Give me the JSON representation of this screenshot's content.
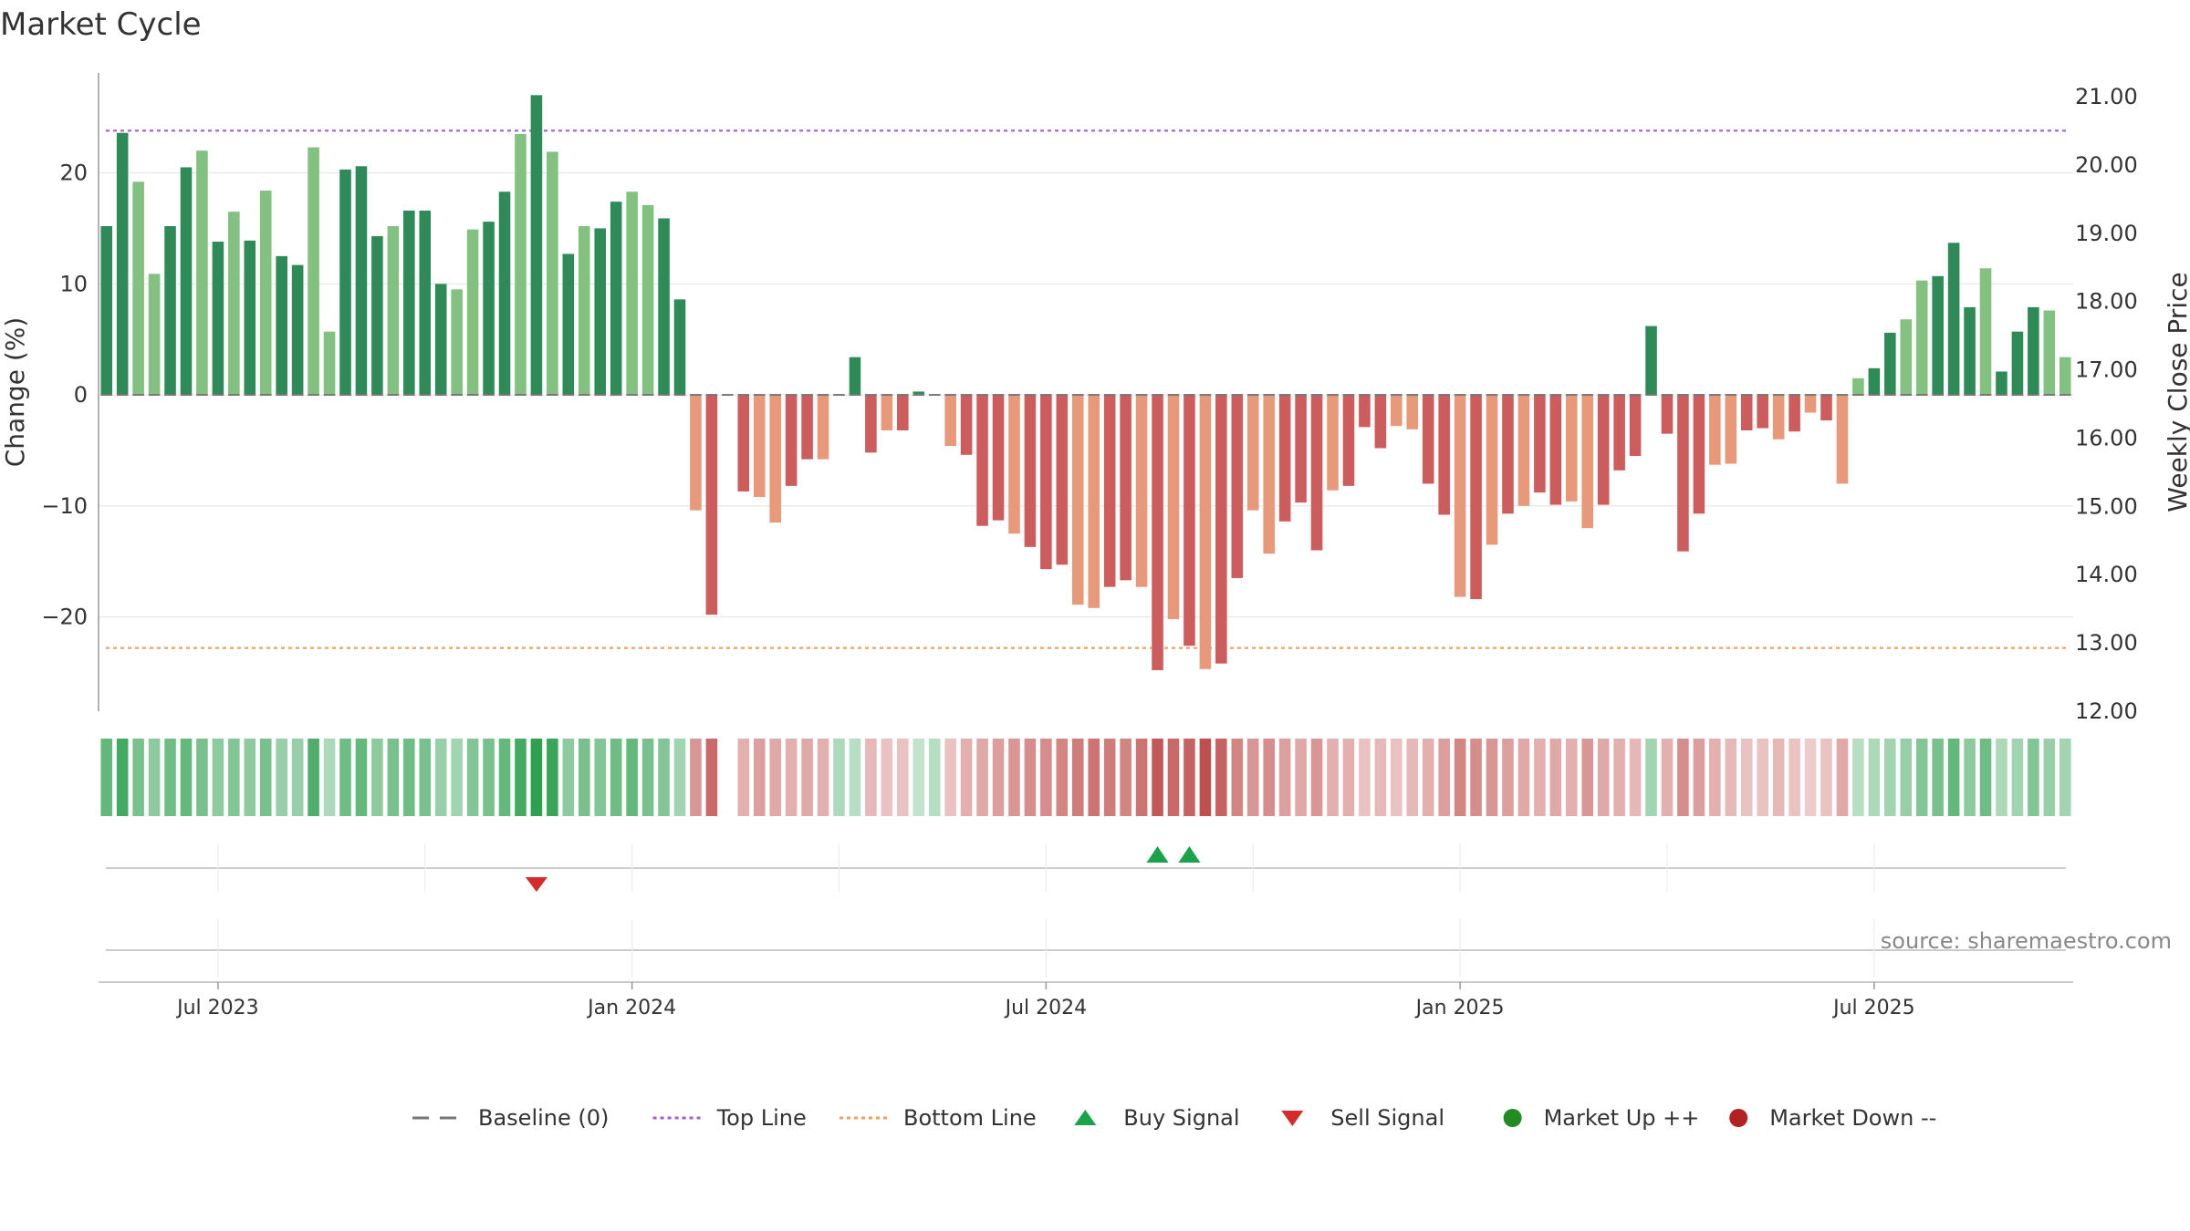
{
  "chart_data": {
    "type": "bar",
    "title": "Market Cycle",
    "ylabel": "Change (%)",
    "y2label": "Weekly Close Price",
    "ylim": [
      -28.5,
      29
    ],
    "y2lim": [
      12.0,
      21.0
    ],
    "yticks": [
      {
        "value": 20,
        "label": "20"
      },
      {
        "value": 10,
        "label": "10"
      },
      {
        "value": 0,
        "label": "0"
      },
      {
        "value": -10,
        "label": "−10"
      },
      {
        "value": -20,
        "label": "−20"
      }
    ],
    "y2ticks": [
      "12.00",
      "13.00",
      "14.00",
      "15.00",
      "16.00",
      "17.00",
      "18.00",
      "19.00",
      "20.00",
      "21.00"
    ],
    "xticks": [
      {
        "index": 7,
        "label": "Jul 2023"
      },
      {
        "index": 33,
        "label": "Jan 2024"
      },
      {
        "index": 59,
        "label": "Jul 2024"
      },
      {
        "index": 85,
        "label": "Jan 2025"
      },
      {
        "index": 111,
        "label": "Jul 2025"
      }
    ],
    "n_weeks": 124,
    "top_line": 23.8,
    "bottom_line": -22.8,
    "values": [
      15.2,
      23.6,
      19.2,
      10.9,
      15.2,
      20.5,
      22.0,
      13.8,
      16.5,
      13.9,
      18.4,
      12.5,
      11.7,
      22.3,
      5.7,
      20.3,
      20.6,
      14.3,
      15.2,
      16.6,
      16.6,
      10.0,
      9.5,
      14.9,
      15.6,
      18.3,
      23.5,
      27.0,
      21.9,
      12.7,
      15.2,
      15.0,
      17.4,
      18.3,
      17.1,
      15.9,
      8.6,
      -10.4,
      -19.8,
      0,
      -8.7,
      -9.2,
      -11.5,
      -8.2,
      -5.8,
      -5.8,
      0,
      3.4,
      -5.2,
      -3.2,
      -3.2,
      0.3,
      0,
      -4.6,
      -5.4,
      -11.8,
      -11.3,
      -12.5,
      -13.7,
      -15.7,
      -15.3,
      -18.9,
      -19.2,
      -17.3,
      -16.7,
      -17.3,
      -24.8,
      -20.2,
      -22.6,
      -24.7,
      -24.2,
      -16.5,
      -10.4,
      -14.3,
      -11.4,
      -9.7,
      -14.0,
      -8.6,
      -8.2,
      -2.9,
      -4.8,
      -2.8,
      -3.1,
      -8.0,
      -10.8,
      -18.2,
      -18.4,
      -13.5,
      -10.7,
      -10.0,
      -8.8,
      -9.9,
      -9.6,
      -12.0,
      -9.9,
      -6.8,
      -5.5,
      6.2,
      -3.5,
      -14.1,
      -10.7,
      -6.3,
      -6.2,
      -3.2,
      -3.0,
      -4.0,
      -3.3,
      -1.6,
      -2.3,
      -8.0,
      1.5,
      2.4,
      5.6,
      6.8,
      10.3,
      10.7,
      13.7,
      7.9,
      11.4,
      2.1,
      5.7,
      7.9,
      7.6,
      3.4
    ],
    "intensity": [
      0.6,
      0.75,
      0.5,
      0.4,
      0.55,
      0.6,
      0.5,
      0.4,
      0.45,
      0.4,
      0.5,
      0.35,
      0.35,
      0.7,
      0.25,
      0.55,
      0.6,
      0.4,
      0.5,
      0.55,
      0.5,
      0.35,
      0.3,
      0.45,
      0.5,
      0.6,
      0.75,
      0.85,
      0.8,
      0.4,
      0.5,
      0.45,
      0.55,
      0.6,
      0.5,
      0.45,
      0.3,
      0.45,
      0.7,
      0,
      0.3,
      0.4,
      0.35,
      0.3,
      0.35,
      0.3,
      0.25,
      0.2,
      0.25,
      0.2,
      0.2,
      0.15,
      0.2,
      0.2,
      0.3,
      0.35,
      0.4,
      0.45,
      0.5,
      0.5,
      0.55,
      0.6,
      0.65,
      0.6,
      0.55,
      0.65,
      0.8,
      0.7,
      0.75,
      0.85,
      0.75,
      0.55,
      0.45,
      0.5,
      0.4,
      0.35,
      0.45,
      0.3,
      0.3,
      0.2,
      0.25,
      0.2,
      0.25,
      0.3,
      0.4,
      0.55,
      0.5,
      0.45,
      0.4,
      0.35,
      0.3,
      0.35,
      0.3,
      0.45,
      0.35,
      0.3,
      0.25,
      0.3,
      0.3,
      0.5,
      0.4,
      0.3,
      0.25,
      0.2,
      0.2,
      0.25,
      0.2,
      0.15,
      0.2,
      0.35,
      0.2,
      0.25,
      0.3,
      0.35,
      0.45,
      0.5,
      0.6,
      0.4,
      0.55,
      0.25,
      0.3,
      0.45,
      0.35,
      0.3
    ],
    "buy_signals": [
      66,
      68
    ],
    "sell_signals": [
      27
    ],
    "colors": {
      "up_strong": "#2e8b57",
      "up_weak": "#82c17f",
      "down_strong": "#cd5c5c",
      "down_weak": "#e8997a",
      "top_line": "#9d5fd4",
      "bottom_line": "#f0a060",
      "buy": "#1aa34a",
      "sell": "#d62b2b",
      "market_up": "#228b22",
      "market_down": "#b22222",
      "baseline": "#777777"
    },
    "legend": [
      {
        "key": "baseline",
        "label": "Baseline (0)",
        "marker": "dash"
      },
      {
        "key": "top_line",
        "label": "Top Line",
        "marker": "dotted"
      },
      {
        "key": "bottom_line",
        "label": "Bottom Line",
        "marker": "dotted"
      },
      {
        "key": "buy",
        "label": "Buy Signal",
        "marker": "triangle-up"
      },
      {
        "key": "sell",
        "label": "Sell Signal",
        "marker": "triangle-down"
      },
      {
        "key": "market_up",
        "label": "Market Up ++",
        "marker": "circle"
      },
      {
        "key": "market_down",
        "label": "Market Down --",
        "marker": "circle"
      }
    ],
    "legend_position": "bottom-center",
    "source": "source: sharemaestro.com"
  }
}
